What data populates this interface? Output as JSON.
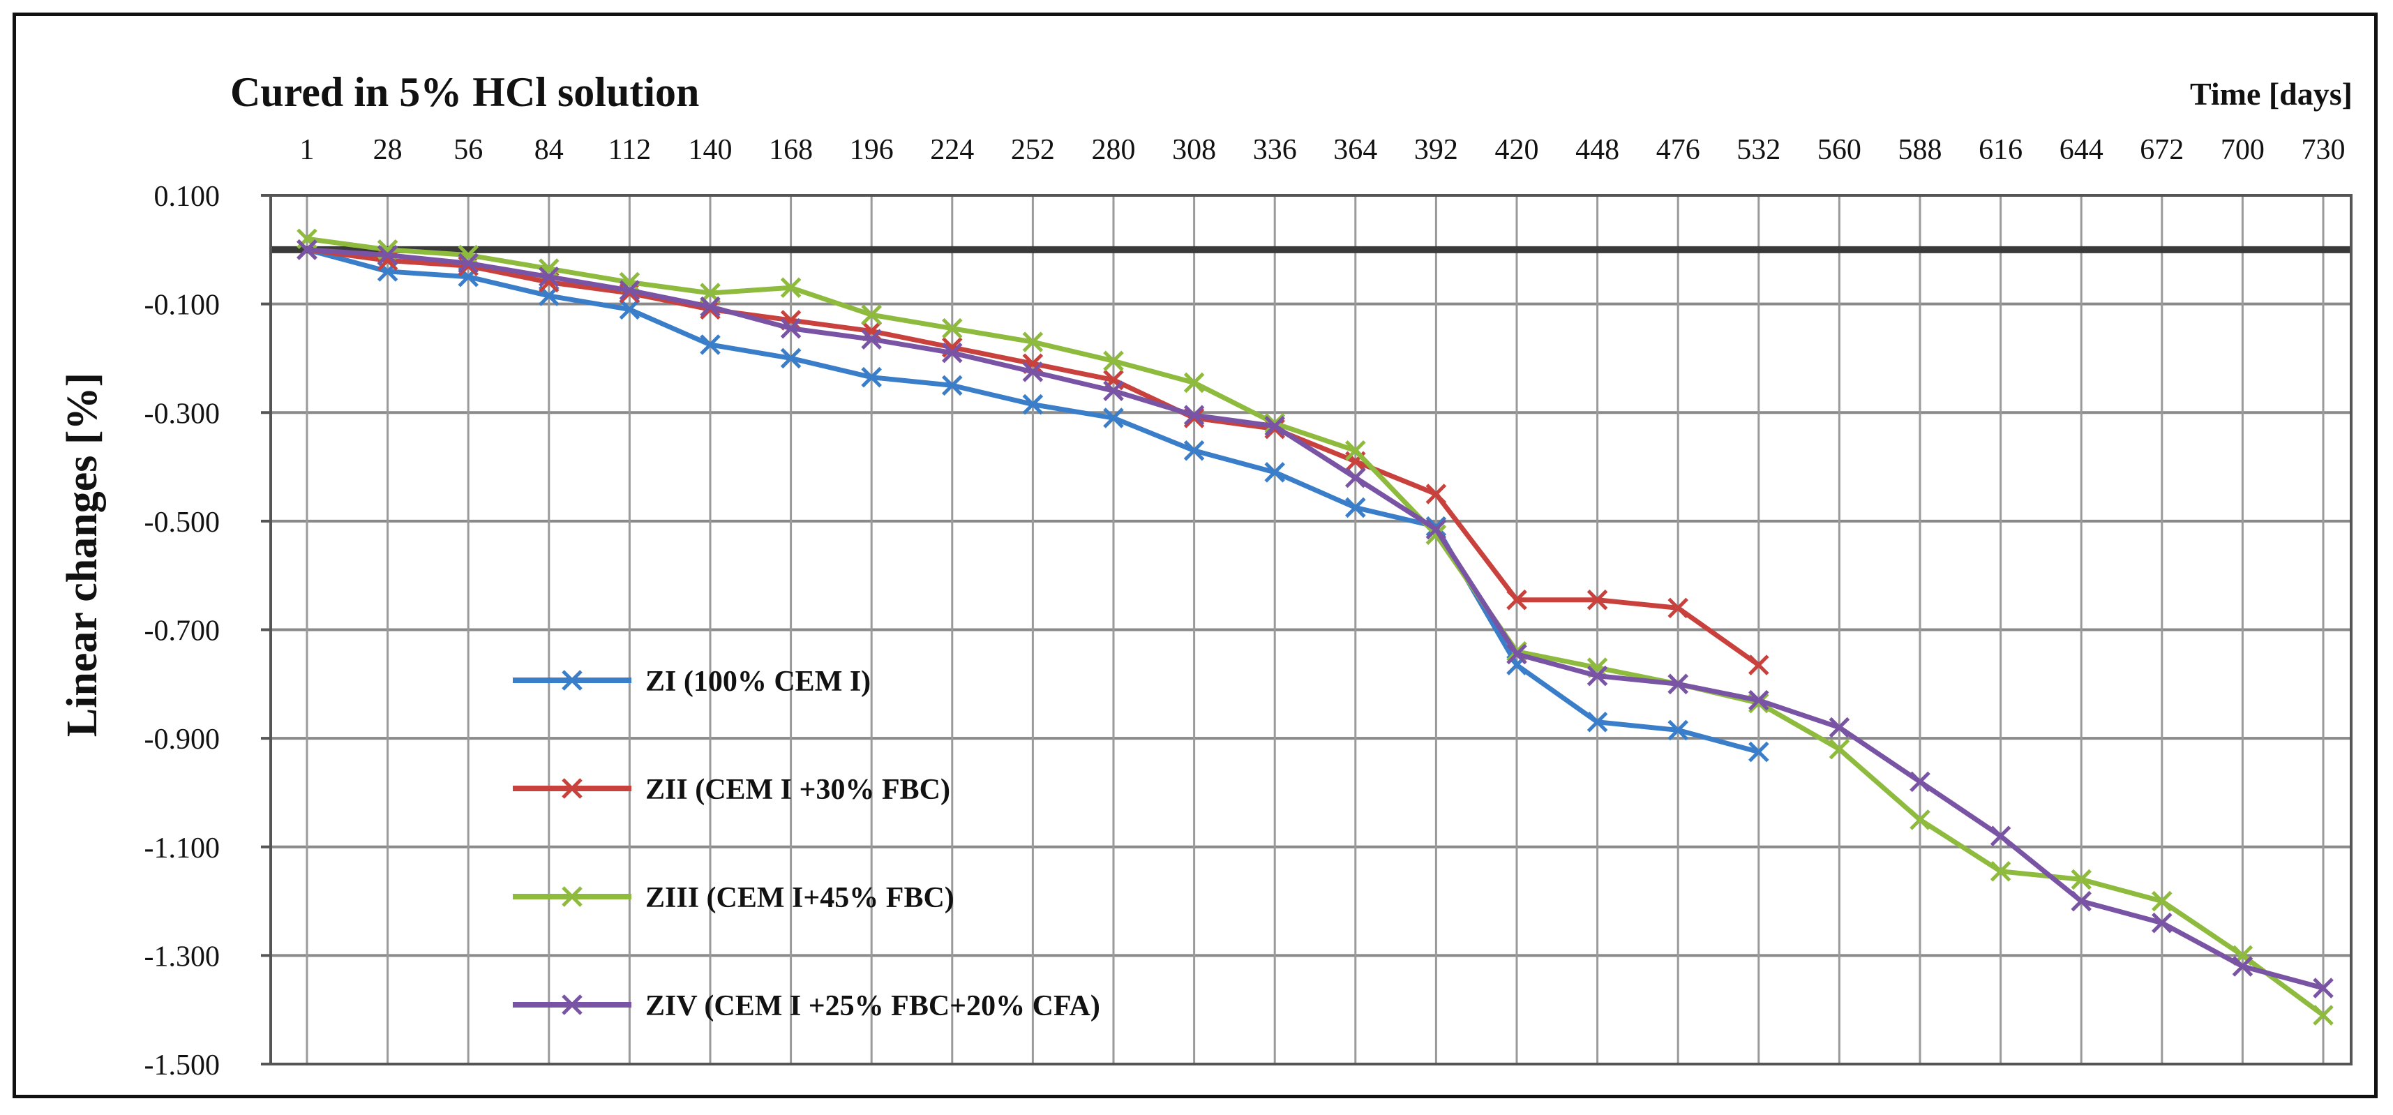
{
  "chart_data": {
    "type": "line",
    "title": "Cured in 5% HCl solution",
    "xlabel": "Time [days]",
    "ylabel": "Linear changes [%]",
    "x_ticks": [
      "1",
      "28",
      "56",
      "84",
      "112",
      "140",
      "168",
      "196",
      "224",
      "252",
      "280",
      "308",
      "336",
      "364",
      "392",
      "420",
      "448",
      "476",
      "532",
      "560",
      "588",
      "616",
      "644",
      "672",
      "700",
      "730"
    ],
    "y_ticks": [
      "0.100",
      "-0.100",
      "-0.300",
      "-0.500",
      "-0.700",
      "-0.900",
      "-1.100",
      "-1.300",
      "-1.500"
    ],
    "ylim": [
      -1.5,
      0.1
    ],
    "legend_position": "left-middle",
    "grid": true,
    "series": [
      {
        "name": "ZI (100% CEM I)",
        "color": "#3a7dc9",
        "values": [
          0.0,
          -0.04,
          -0.05,
          -0.085,
          -0.11,
          -0.175,
          -0.2,
          -0.235,
          -0.25,
          -0.285,
          -0.31,
          -0.37,
          -0.41,
          -0.475,
          -0.51,
          -0.765,
          -0.87,
          -0.885,
          -0.925
        ]
      },
      {
        "name": "ZII (CEM I +30% FBC)",
        "color": "#c8413c",
        "values": [
          0.0,
          -0.02,
          -0.03,
          -0.06,
          -0.08,
          -0.11,
          -0.13,
          -0.15,
          -0.18,
          -0.21,
          -0.24,
          -0.31,
          -0.33,
          -0.39,
          -0.45,
          -0.645,
          -0.645,
          -0.66,
          -0.765
        ]
      },
      {
        "name": "ZIII (CEM I+45% FBC)",
        "color": "#8ebb3e",
        "values": [
          0.02,
          0.0,
          -0.01,
          -0.035,
          -0.06,
          -0.08,
          -0.07,
          -0.12,
          -0.145,
          -0.17,
          -0.205,
          -0.245,
          -0.32,
          -0.37,
          -0.525,
          -0.74,
          -0.77,
          -0.8,
          -0.835,
          -0.92,
          -1.05,
          -1.145,
          -1.16,
          -1.2,
          -1.3,
          -1.41
        ]
      },
      {
        "name": "ZIV (CEM I +25% FBC+20% CFA)",
        "color": "#7a54a4",
        "values": [
          0.0,
          -0.01,
          -0.025,
          -0.05,
          -0.075,
          -0.105,
          -0.145,
          -0.165,
          -0.19,
          -0.225,
          -0.26,
          -0.305,
          -0.325,
          -0.42,
          -0.515,
          -0.745,
          -0.785,
          -0.8,
          -0.83,
          -0.88,
          -0.98,
          -1.08,
          -1.2,
          -1.24,
          -1.32,
          -1.36
        ]
      }
    ]
  }
}
